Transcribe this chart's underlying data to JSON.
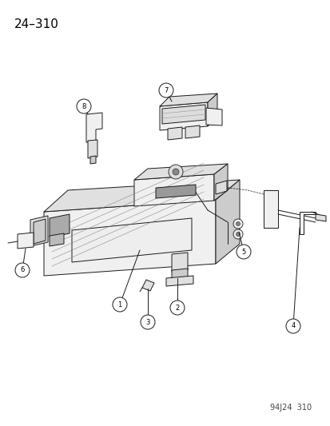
{
  "title": "24–310",
  "footer": "94J24  310",
  "bg_color": "#ffffff",
  "title_fontsize": 11,
  "footer_fontsize": 7,
  "lc": "#1a1a1a",
  "lw": 0.7,
  "fill_light": "#f0f0f0",
  "fill_mid": "#e0e0e0",
  "fill_dark": "#cccccc",
  "fill_white": "#ffffff"
}
